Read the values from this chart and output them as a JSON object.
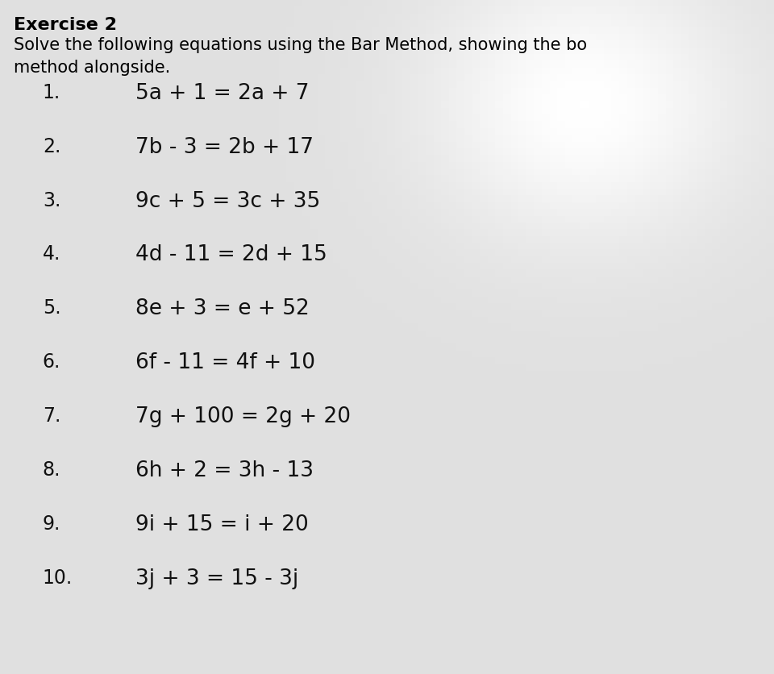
{
  "background_color": "#e8e8e8",
  "title_bold": "Exercise 2",
  "subtitle_line1": "Solve the following equations using the Bar Method, showing the bo",
  "subtitle_line2": "method alongside.",
  "equations": [
    "5a + 1 = 2a + 7",
    "7b - 3 = 2b + 17",
    "9c + 5 = 3c + 35",
    "4d - 11 = 2d + 15",
    "8e + 3 = e + 52",
    "6f - 11 = 4f + 10",
    "7g + 100 = 2g + 20",
    "6h + 2 = 3h - 13",
    "9i + 15 = i + 20",
    "3j + 3 = 15 - 3j"
  ],
  "numbers": [
    "1.",
    "2.",
    "3.",
    "4.",
    "5.",
    "6.",
    "7.",
    "8.",
    "9.",
    "10."
  ],
  "title_fontsize": 16,
  "subtitle_fontsize": 15,
  "equation_fontsize": 19,
  "number_fontsize": 17,
  "text_color": "#111111",
  "title_color": "#000000",
  "fig_width": 9.6,
  "fig_height": 8.36,
  "dpi": 100
}
